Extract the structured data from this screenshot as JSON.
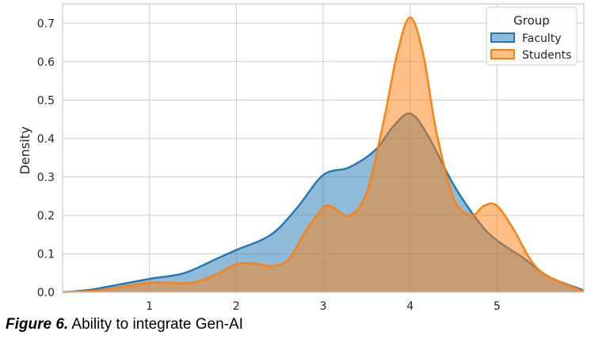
{
  "caption": {
    "lead": "Figure 6.",
    "text": "Ability to integrate Gen-AI"
  },
  "chart_data": {
    "type": "area",
    "ylabel": "Density",
    "xlabel": "",
    "xlim": [
      0,
      6
    ],
    "ylim": [
      0,
      0.75
    ],
    "xticks": [
      1,
      2,
      3,
      4,
      5
    ],
    "yticks": [
      0.0,
      0.1,
      0.2,
      0.3,
      0.4,
      0.5,
      0.6,
      0.7
    ],
    "grid": true,
    "legend": {
      "title": "Group",
      "placement": "top-right"
    },
    "series": [
      {
        "name": "Faculty",
        "color": "#1f77b4",
        "x": [
          0,
          0.3,
          0.6,
          1.0,
          1.4,
          1.8,
          2.0,
          2.4,
          2.7,
          3.0,
          3.3,
          3.6,
          3.8,
          4.0,
          4.2,
          4.5,
          4.8,
          5.0,
          5.3,
          5.6,
          6.0
        ],
        "y": [
          0.0,
          0.006,
          0.018,
          0.035,
          0.05,
          0.09,
          0.11,
          0.15,
          0.22,
          0.305,
          0.325,
          0.37,
          0.43,
          0.465,
          0.41,
          0.28,
          0.18,
          0.135,
          0.09,
          0.04,
          0.005
        ]
      },
      {
        "name": "Students",
        "color": "#ff7f0e",
        "x": [
          0,
          0.4,
          0.7,
          1.0,
          1.2,
          1.5,
          1.8,
          2.0,
          2.2,
          2.4,
          2.6,
          2.8,
          3.0,
          3.1,
          3.3,
          3.5,
          3.7,
          3.85,
          4.0,
          4.15,
          4.3,
          4.5,
          4.7,
          4.85,
          5.0,
          5.2,
          5.4,
          5.6,
          6.0
        ],
        "y": [
          0.0,
          0.005,
          0.015,
          0.025,
          0.025,
          0.025,
          0.05,
          0.073,
          0.075,
          0.068,
          0.085,
          0.16,
          0.22,
          0.222,
          0.2,
          0.26,
          0.45,
          0.62,
          0.715,
          0.62,
          0.42,
          0.245,
          0.2,
          0.225,
          0.225,
          0.16,
          0.08,
          0.04,
          0.002
        ]
      }
    ]
  }
}
